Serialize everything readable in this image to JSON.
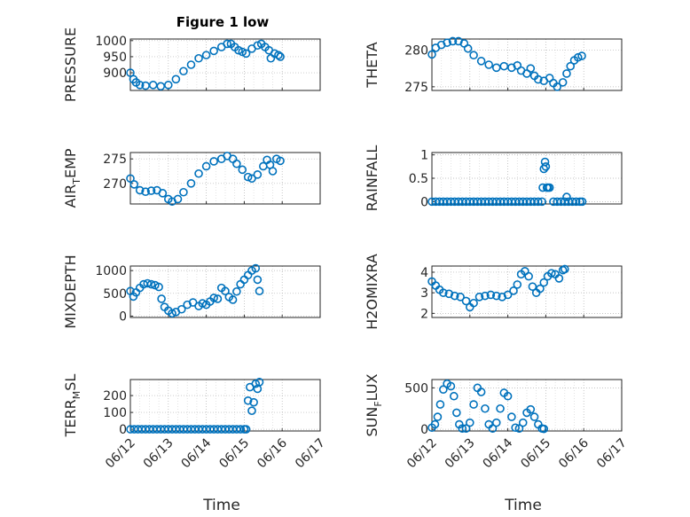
{
  "figure": {
    "title": "Figure 1 low"
  },
  "style": {
    "marker_color": "#0072bd",
    "axes_color": "#262626",
    "marker": "circle"
  },
  "chart_data": [
    {
      "type": "scatter",
      "ylabel": "PRESSURE",
      "title": "Figure 1 low",
      "ylim": [
        845,
        1005
      ],
      "yticks": [
        900,
        950,
        1000
      ],
      "ytick_labels": [
        "900",
        "950",
        "1000"
      ],
      "xlim": [
        "06/12",
        "06/17"
      ],
      "xticks": [
        "06/12",
        "06/13",
        "06/14",
        "06/15",
        "06/16",
        "06/17"
      ],
      "show_xtick_labels": false,
      "grid": true,
      "points": [
        [
          0.0,
          900
        ],
        [
          0.08,
          880
        ],
        [
          0.15,
          870
        ],
        [
          0.25,
          862
        ],
        [
          0.4,
          860
        ],
        [
          0.6,
          862
        ],
        [
          0.8,
          858
        ],
        [
          1.0,
          862
        ],
        [
          1.2,
          880
        ],
        [
          1.4,
          905
        ],
        [
          1.6,
          925
        ],
        [
          1.8,
          945
        ],
        [
          2.0,
          955
        ],
        [
          2.2,
          968
        ],
        [
          2.4,
          980
        ],
        [
          2.55,
          990
        ],
        [
          2.65,
          990
        ],
        [
          2.75,
          980
        ],
        [
          2.85,
          970
        ],
        [
          2.95,
          965
        ],
        [
          3.05,
          960
        ],
        [
          3.2,
          975
        ],
        [
          3.35,
          985
        ],
        [
          3.45,
          990
        ],
        [
          3.55,
          980
        ],
        [
          3.65,
          970
        ],
        [
          3.7,
          945
        ],
        [
          3.8,
          960
        ],
        [
          3.9,
          955
        ],
        [
          3.95,
          950
        ]
      ]
    },
    {
      "type": "scatter",
      "ylabel": "THETA",
      "ylim": [
        274.5,
        281.5
      ],
      "yticks": [
        275,
        280
      ],
      "ytick_labels": [
        "275",
        "280"
      ],
      "xlim": [
        "06/12",
        "06/17"
      ],
      "xticks": [
        "06/12",
        "06/13",
        "06/14",
        "06/15",
        "06/16",
        "06/17"
      ],
      "show_xtick_labels": false,
      "grid": true,
      "points": [
        [
          0.0,
          279.4
        ],
        [
          0.1,
          280.3
        ],
        [
          0.25,
          280.7
        ],
        [
          0.4,
          281.0
        ],
        [
          0.55,
          281.2
        ],
        [
          0.7,
          281.2
        ],
        [
          0.85,
          280.9
        ],
        [
          0.95,
          280.2
        ],
        [
          1.1,
          279.3
        ],
        [
          1.3,
          278.5
        ],
        [
          1.5,
          278.0
        ],
        [
          1.7,
          277.6
        ],
        [
          1.9,
          277.8
        ],
        [
          2.1,
          277.6
        ],
        [
          2.25,
          277.9
        ],
        [
          2.35,
          277.2
        ],
        [
          2.5,
          276.8
        ],
        [
          2.6,
          277.5
        ],
        [
          2.7,
          276.5
        ],
        [
          2.8,
          276.0
        ],
        [
          2.95,
          275.8
        ],
        [
          3.1,
          276.2
        ],
        [
          3.2,
          275.5
        ],
        [
          3.3,
          275.0
        ],
        [
          3.45,
          275.6
        ],
        [
          3.55,
          276.8
        ],
        [
          3.65,
          277.8
        ],
        [
          3.75,
          278.6
        ],
        [
          3.85,
          279.0
        ],
        [
          3.95,
          279.2
        ]
      ]
    },
    {
      "type": "scatter",
      "ylabel": "AIR_TEMP",
      "ylim": [
        265.8,
        276.3
      ],
      "yticks": [
        270,
        275
      ],
      "ytick_labels": [
        "270",
        "275"
      ],
      "xlim": [
        "06/12",
        "06/17"
      ],
      "xticks": [
        "06/12",
        "06/13",
        "06/14",
        "06/15",
        "06/16",
        "06/17"
      ],
      "show_xtick_labels": false,
      "grid": true,
      "points": [
        [
          0.0,
          271.0
        ],
        [
          0.1,
          269.8
        ],
        [
          0.25,
          268.6
        ],
        [
          0.4,
          268.3
        ],
        [
          0.55,
          268.5
        ],
        [
          0.7,
          268.6
        ],
        [
          0.85,
          268.0
        ],
        [
          1.0,
          266.8
        ],
        [
          1.1,
          266.3
        ],
        [
          1.25,
          266.8
        ],
        [
          1.4,
          268.2
        ],
        [
          1.6,
          270.0
        ],
        [
          1.8,
          272.0
        ],
        [
          2.0,
          273.5
        ],
        [
          2.2,
          274.5
        ],
        [
          2.4,
          275.0
        ],
        [
          2.55,
          275.6
        ],
        [
          2.7,
          275.0
        ],
        [
          2.8,
          274.0
        ],
        [
          2.95,
          272.8
        ],
        [
          3.1,
          271.3
        ],
        [
          3.2,
          271.0
        ],
        [
          3.35,
          271.8
        ],
        [
          3.5,
          273.5
        ],
        [
          3.6,
          274.8
        ],
        [
          3.68,
          273.8
        ],
        [
          3.75,
          272.5
        ],
        [
          3.85,
          275.0
        ],
        [
          3.95,
          274.6
        ]
      ]
    },
    {
      "type": "scatter",
      "ylabel": "RAINFALL",
      "ylim": [
        -0.05,
        1.05
      ],
      "yticks": [
        0,
        0.5,
        1
      ],
      "ytick_labels": [
        "0",
        "0.5",
        "1"
      ],
      "xlim": [
        "06/12",
        "06/17"
      ],
      "xticks": [
        "06/12",
        "06/13",
        "06/14",
        "06/15",
        "06/16",
        "06/17"
      ],
      "show_xtick_labels": false,
      "grid": true,
      "points": [
        [
          0.0,
          0
        ],
        [
          0.1,
          0
        ],
        [
          0.2,
          0
        ],
        [
          0.3,
          0
        ],
        [
          0.4,
          0
        ],
        [
          0.5,
          0
        ],
        [
          0.6,
          0
        ],
        [
          0.7,
          0
        ],
        [
          0.8,
          0
        ],
        [
          0.9,
          0
        ],
        [
          1.0,
          0
        ],
        [
          1.1,
          0
        ],
        [
          1.2,
          0
        ],
        [
          1.3,
          0
        ],
        [
          1.4,
          0
        ],
        [
          1.5,
          0
        ],
        [
          1.6,
          0
        ],
        [
          1.7,
          0
        ],
        [
          1.8,
          0
        ],
        [
          1.9,
          0
        ],
        [
          2.0,
          0
        ],
        [
          2.1,
          0
        ],
        [
          2.2,
          0
        ],
        [
          2.3,
          0
        ],
        [
          2.4,
          0
        ],
        [
          2.5,
          0
        ],
        [
          2.6,
          0
        ],
        [
          2.7,
          0
        ],
        [
          2.8,
          0
        ],
        [
          2.9,
          0
        ],
        [
          2.92,
          0.3
        ],
        [
          2.95,
          0.7
        ],
        [
          2.98,
          0.85
        ],
        [
          3.0,
          0.75
        ],
        [
          3.03,
          0.3
        ],
        [
          3.06,
          0.3
        ],
        [
          3.1,
          0.3
        ],
        [
          3.2,
          0
        ],
        [
          3.3,
          0
        ],
        [
          3.4,
          0
        ],
        [
          3.5,
          0
        ],
        [
          3.55,
          0.1
        ],
        [
          3.6,
          0
        ],
        [
          3.7,
          0
        ],
        [
          3.8,
          0
        ],
        [
          3.9,
          0
        ],
        [
          3.96,
          0
        ]
      ]
    },
    {
      "type": "scatter",
      "ylabel": "MIXDEPTH",
      "ylim": [
        -30,
        1100
      ],
      "yticks": [
        0,
        500,
        1000
      ],
      "ytick_labels": [
        "0",
        "500",
        "1000"
      ],
      "xlim": [
        "06/12",
        "06/17"
      ],
      "xticks": [
        "06/12",
        "06/13",
        "06/14",
        "06/15",
        "06/16",
        "06/17"
      ],
      "show_xtick_labels": false,
      "grid": true,
      "points": [
        [
          0.0,
          550
        ],
        [
          0.08,
          430
        ],
        [
          0.15,
          520
        ],
        [
          0.25,
          620
        ],
        [
          0.35,
          700
        ],
        [
          0.45,
          720
        ],
        [
          0.55,
          700
        ],
        [
          0.65,
          680
        ],
        [
          0.75,
          640
        ],
        [
          0.82,
          380
        ],
        [
          0.9,
          200
        ],
        [
          1.0,
          120
        ],
        [
          1.1,
          60
        ],
        [
          1.2,
          90
        ],
        [
          1.35,
          150
        ],
        [
          1.5,
          250
        ],
        [
          1.65,
          300
        ],
        [
          1.8,
          220
        ],
        [
          1.9,
          280
        ],
        [
          2.0,
          250
        ],
        [
          2.1,
          320
        ],
        [
          2.2,
          400
        ],
        [
          2.3,
          380
        ],
        [
          2.4,
          620
        ],
        [
          2.5,
          550
        ],
        [
          2.6,
          420
        ],
        [
          2.7,
          360
        ],
        [
          2.8,
          540
        ],
        [
          2.9,
          700
        ],
        [
          3.0,
          800
        ],
        [
          3.1,
          900
        ],
        [
          3.2,
          1000
        ],
        [
          3.3,
          1050
        ],
        [
          3.35,
          800
        ],
        [
          3.4,
          550
        ]
      ]
    },
    {
      "type": "scatter",
      "ylabel": "H2OMIXRA",
      "ylim": [
        1.8,
        4.3
      ],
      "yticks": [
        2,
        3,
        4
      ],
      "ytick_labels": [
        "2",
        "3",
        "4"
      ],
      "xlim": [
        "06/12",
        "06/17"
      ],
      "xticks": [
        "06/12",
        "06/13",
        "06/14",
        "06/15",
        "06/16",
        "06/17"
      ],
      "show_xtick_labels": false,
      "grid": true,
      "points": [
        [
          0.0,
          3.55
        ],
        [
          0.1,
          3.35
        ],
        [
          0.2,
          3.15
        ],
        [
          0.3,
          3.0
        ],
        [
          0.45,
          2.95
        ],
        [
          0.6,
          2.85
        ],
        [
          0.75,
          2.8
        ],
        [
          0.9,
          2.6
        ],
        [
          1.0,
          2.3
        ],
        [
          1.1,
          2.5
        ],
        [
          1.25,
          2.8
        ],
        [
          1.4,
          2.85
        ],
        [
          1.55,
          2.9
        ],
        [
          1.7,
          2.85
        ],
        [
          1.85,
          2.8
        ],
        [
          2.0,
          2.9
        ],
        [
          2.15,
          3.1
        ],
        [
          2.25,
          3.4
        ],
        [
          2.35,
          3.9
        ],
        [
          2.45,
          4.05
        ],
        [
          2.55,
          3.8
        ],
        [
          2.65,
          3.3
        ],
        [
          2.75,
          3.0
        ],
        [
          2.85,
          3.2
        ],
        [
          2.95,
          3.5
        ],
        [
          3.05,
          3.8
        ],
        [
          3.15,
          3.95
        ],
        [
          3.25,
          3.9
        ],
        [
          3.35,
          3.7
        ],
        [
          3.45,
          4.1
        ],
        [
          3.5,
          4.15
        ]
      ]
    },
    {
      "type": "scatter",
      "ylabel": "TERR_MSL",
      "ylim": [
        -10,
        295
      ],
      "yticks": [
        0,
        100,
        200
      ],
      "ytick_labels": [
        "0",
        "100",
        "200"
      ],
      "xlim": [
        "06/12",
        "06/17"
      ],
      "xticks": [
        "06/12",
        "06/13",
        "06/14",
        "06/15",
        "06/16",
        "06/17"
      ],
      "show_xtick_labels": true,
      "xlabel": "Time",
      "grid": true,
      "points": [
        [
          0.0,
          0
        ],
        [
          0.1,
          0
        ],
        [
          0.2,
          0
        ],
        [
          0.3,
          0
        ],
        [
          0.4,
          0
        ],
        [
          0.5,
          0
        ],
        [
          0.6,
          0
        ],
        [
          0.7,
          0
        ],
        [
          0.8,
          0
        ],
        [
          0.9,
          0
        ],
        [
          1.0,
          0
        ],
        [
          1.1,
          0
        ],
        [
          1.2,
          0
        ],
        [
          1.3,
          0
        ],
        [
          1.4,
          0
        ],
        [
          1.5,
          0
        ],
        [
          1.6,
          0
        ],
        [
          1.7,
          0
        ],
        [
          1.8,
          0
        ],
        [
          1.9,
          0
        ],
        [
          2.0,
          0
        ],
        [
          2.1,
          0
        ],
        [
          2.2,
          0
        ],
        [
          2.3,
          0
        ],
        [
          2.4,
          0
        ],
        [
          2.5,
          0
        ],
        [
          2.6,
          0
        ],
        [
          2.7,
          0
        ],
        [
          2.8,
          0
        ],
        [
          2.9,
          0
        ],
        [
          3.0,
          0
        ],
        [
          3.05,
          0
        ],
        [
          3.1,
          170
        ],
        [
          3.15,
          250
        ],
        [
          3.2,
          110
        ],
        [
          3.25,
          160
        ],
        [
          3.3,
          270
        ],
        [
          3.35,
          240
        ],
        [
          3.4,
          280
        ]
      ]
    },
    {
      "type": "scatter",
      "ylabel": "SUN_FLUX",
      "ylim": [
        -20,
        600
      ],
      "yticks": [
        0,
        500
      ],
      "ytick_labels": [
        "0",
        "500"
      ],
      "xlim": [
        "06/12",
        "06/17"
      ],
      "xticks": [
        "06/12",
        "06/13",
        "06/14",
        "06/15",
        "06/16",
        "06/17"
      ],
      "show_xtick_labels": true,
      "xlabel": "Time",
      "grid": true,
      "points": [
        [
          0.0,
          20
        ],
        [
          0.08,
          60
        ],
        [
          0.15,
          150
        ],
        [
          0.22,
          300
        ],
        [
          0.3,
          480
        ],
        [
          0.4,
          550
        ],
        [
          0.5,
          520
        ],
        [
          0.58,
          400
        ],
        [
          0.65,
          200
        ],
        [
          0.72,
          60
        ],
        [
          0.8,
          10
        ],
        [
          0.9,
          10
        ],
        [
          1.0,
          80
        ],
        [
          1.1,
          300
        ],
        [
          1.2,
          500
        ],
        [
          1.3,
          450
        ],
        [
          1.4,
          250
        ],
        [
          1.5,
          60
        ],
        [
          1.6,
          10
        ],
        [
          1.7,
          80
        ],
        [
          1.8,
          250
        ],
        [
          1.9,
          440
        ],
        [
          2.0,
          400
        ],
        [
          2.1,
          150
        ],
        [
          2.2,
          20
        ],
        [
          2.3,
          10
        ],
        [
          2.4,
          80
        ],
        [
          2.5,
          200
        ],
        [
          2.6,
          240
        ],
        [
          2.7,
          150
        ],
        [
          2.8,
          60
        ],
        [
          2.9,
          10
        ],
        [
          2.95,
          5
        ]
      ]
    }
  ],
  "ylabel_parts": [
    {
      "main": "PRESSURE",
      "sub": "",
      "rest": ""
    },
    {
      "main": "THETA",
      "sub": "",
      "rest": ""
    },
    {
      "main": "AIR",
      "sub": "T",
      "rest": "EMP"
    },
    {
      "main": "RAINFALL",
      "sub": "",
      "rest": ""
    },
    {
      "main": "MIXDEPTH",
      "sub": "",
      "rest": ""
    },
    {
      "main": "H2OMIXRA",
      "sub": "",
      "rest": ""
    },
    {
      "main": "TERR",
      "sub": "M",
      "rest": "SL"
    },
    {
      "main": "SUN",
      "sub": "F",
      "rest": "LUX"
    }
  ]
}
